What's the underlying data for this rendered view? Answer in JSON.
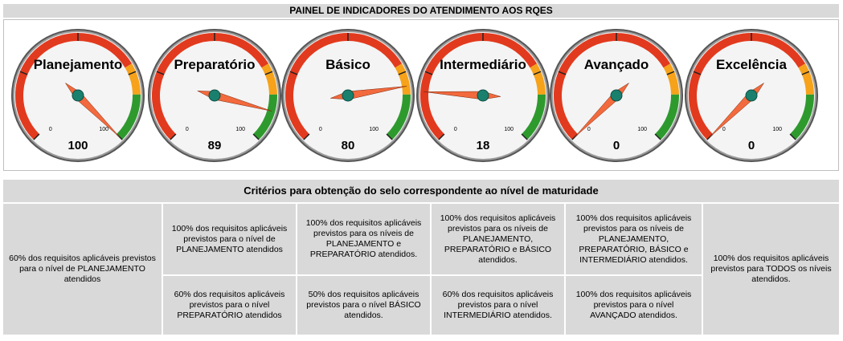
{
  "header": {
    "title": "PAINEL DE INDICADORES DO ATENDIMENTO AOS RQES"
  },
  "colors": {
    "red": "#e23a1e",
    "orange": "#f6a21a",
    "green": "#2e9a2e",
    "needle": "#f26a3d",
    "hub": "#19806e",
    "face": "#f4f4f4"
  },
  "gauges": [
    {
      "label": "Planejamento",
      "value": "100",
      "min_label": "0",
      "max_label": "100",
      "needle_value": 100
    },
    {
      "label": "Preparatório",
      "value": "89",
      "min_label": "0",
      "max_label": "100",
      "needle_value": 89
    },
    {
      "label": "Básico",
      "value": "80",
      "min_label": "0",
      "max_label": "100",
      "needle_value": 80
    },
    {
      "label": "Intermediário",
      "value": "18",
      "min_label": "0",
      "max_label": "100",
      "needle_value": 18
    },
    {
      "label": "Avançado",
      "value": "0",
      "min_label": "0",
      "max_label": "100",
      "needle_value": 0
    },
    {
      "label": "Excelência",
      "value": "0",
      "min_label": "0",
      "max_label": "100",
      "needle_value": 0
    }
  ],
  "criteria": {
    "title": "Critérios para obtenção do selo correspondente ao nível de maturidade",
    "col1": "60% dos requisitos aplicáveis previstos para o nível de PLANEJAMENTO atendidos",
    "col2_top": "100% dos requisitos aplicáveis previstos para o nível de PLANEJAMENTO atendidos",
    "col2_bottom": "60% dos requisitos aplicáveis previstos para o nível PREPARATÓRIO atendidos",
    "col3_top": "100% dos requisitos aplicáveis previstos para os níveis de PLANEJAMENTO e PREPARATÓRIO atendidos.",
    "col3_bottom": "50% dos requisitos aplicáveis previstos para o nível BÁSICO atendidos.",
    "col4_top": "100% dos requisitos aplicáveis previstos para os níveis de PLANEJAMENTO, PREPARATÓRIO e BÁSICO atendidos.",
    "col4_bottom": "60% dos requisitos aplicáveis previstos para o nível INTERMEDIÁRIO atendidos.",
    "col5_top": "100% dos requisitos aplicáveis previstos para os níveis de PLANEJAMENTO, PREPARATÓRIO, BÁSICO e INTERMEDIÁRIO atendidos.",
    "col5_bottom": "100% dos requisitos aplicáveis previstos para o nível AVANÇADO atendidos.",
    "col6": "100% dos requisitos aplicáveis previstos para TODOS os níveis atendidos."
  }
}
